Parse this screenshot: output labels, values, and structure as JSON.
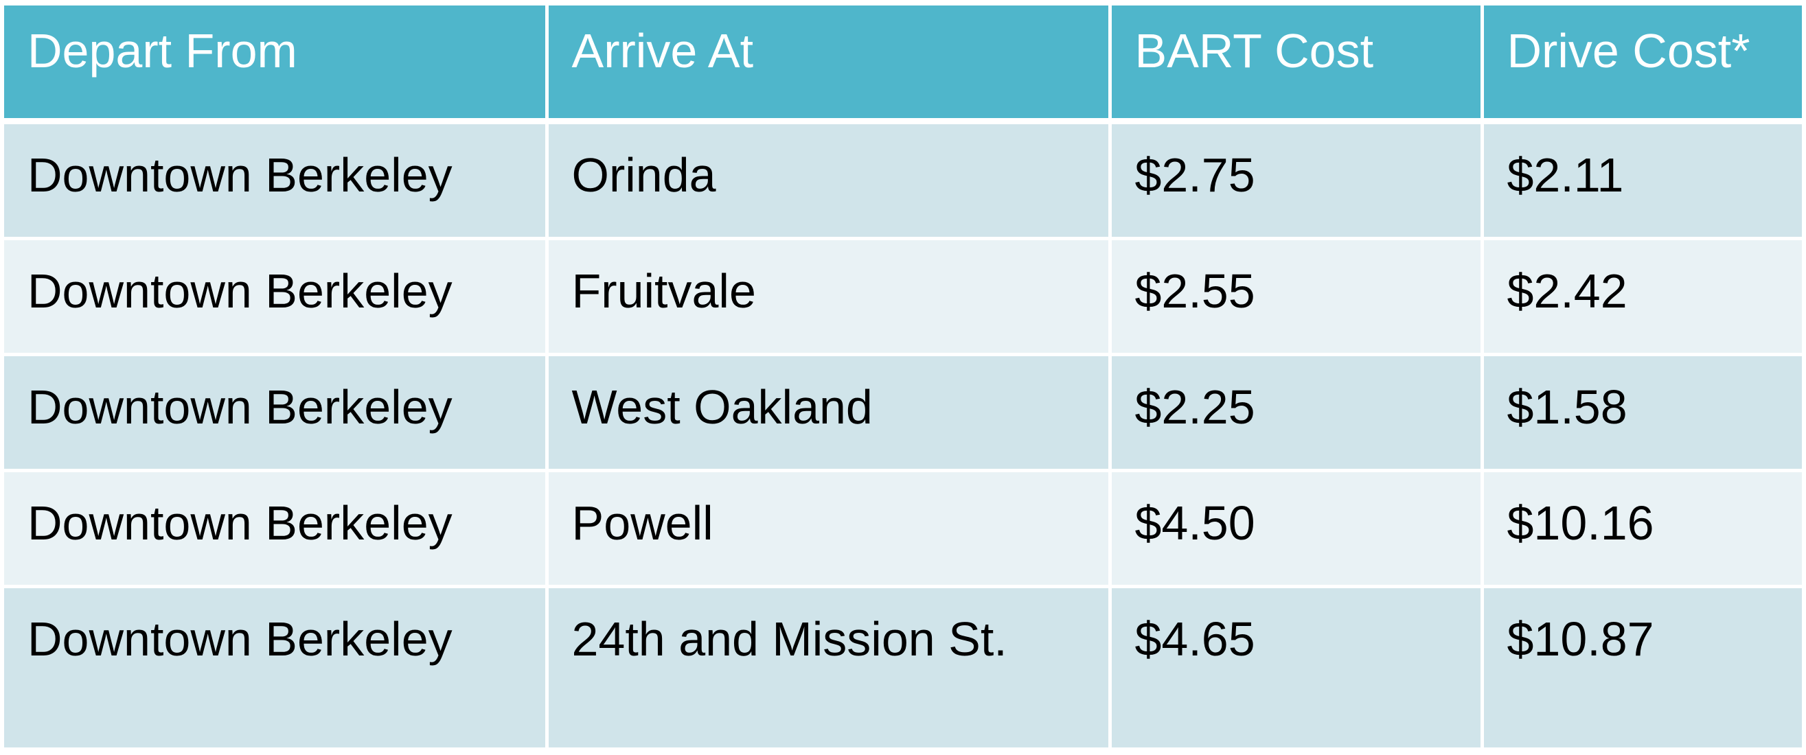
{
  "table": {
    "headers": [
      "Depart From",
      "Arrive At",
      "BART Cost",
      "Drive Cost*"
    ],
    "rows": [
      [
        "Downtown Berkeley",
        "Orinda",
        "$2.75",
        "$2.11"
      ],
      [
        "Downtown Berkeley",
        "Fruitvale",
        "$2.55",
        "$2.42"
      ],
      [
        "Downtown Berkeley",
        "West Oakland",
        "$2.25",
        "$1.58"
      ],
      [
        "Downtown Berkeley",
        "Powell",
        "$4.50",
        "$10.16"
      ],
      [
        "Downtown Berkeley",
        "24th and Mission St.",
        "$4.65",
        "$10.87"
      ]
    ]
  },
  "colors": {
    "header_bg": "#4fb6cb",
    "row_odd_bg": "#d0e4ea",
    "row_even_bg": "#e9f2f5"
  }
}
